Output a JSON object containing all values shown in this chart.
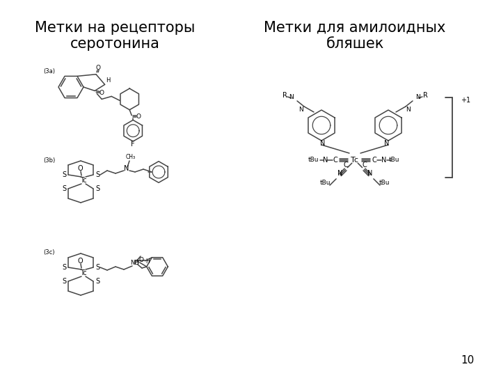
{
  "title_left": "Метки на рецепторы\nсеротонина",
  "title_right": "Метки для амилоидных\nбляшек",
  "label_3a": "(3a)",
  "label_3b": "(3b)",
  "label_3c": "(3c)",
  "page_number": "10",
  "bg_color": "#ffffff",
  "text_color": "#000000",
  "title_fontsize": 15,
  "structure_color": "#444444",
  "page_fontsize": 11
}
